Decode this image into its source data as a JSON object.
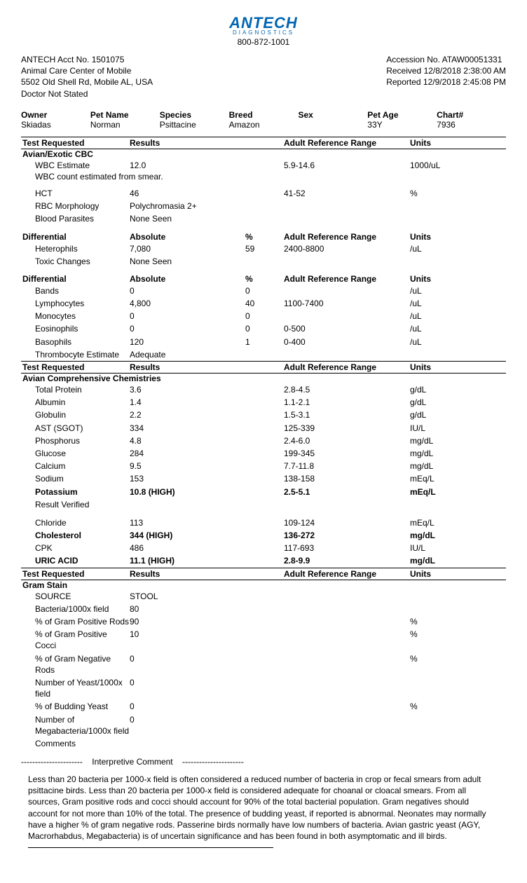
{
  "logo": {
    "name": "ANTECH",
    "sub": "DIAGNOSTICS",
    "phone": "800-872-1001"
  },
  "header": {
    "acct": "ANTECH Acct No. 1501075",
    "clinic": "Animal Care Center of Mobile",
    "address": "5502 Old Shell Rd, Mobile AL, USA",
    "doctor": "Doctor Not Stated",
    "accession": "Accession No. ATAW00051331",
    "received": "Received 12/8/2018 2:38:00 AM",
    "reported": "Reported 12/9/2018 2:45:08 PM"
  },
  "pet": {
    "owner_l": "Owner",
    "owner_v": "Skiadas",
    "name_l": "Pet Name",
    "name_v": "Norman",
    "species_l": "Species",
    "species_v": "Psittacine",
    "breed_l": "Breed",
    "breed_v": "Amazon",
    "sex_l": "Sex",
    "sex_v": "",
    "age_l": "Pet Age",
    "age_v": "33Y",
    "chart_l": "Chart#",
    "chart_v": "7936"
  },
  "cols": {
    "test": "Test Requested",
    "res": "Results",
    "pct": "%",
    "ref": "Adult Reference Range",
    "units": "Units"
  },
  "cbc": {
    "title": "Avian/Exotic CBC",
    "rows": [
      {
        "n": "WBC Estimate",
        "r": "12.0",
        "ref": "5.9-14.6",
        "u": "1000/uL"
      }
    ],
    "note": "WBC count estimated from smear.",
    "rows2": [
      {
        "n": "HCT",
        "r": "46",
        "ref": "41-52",
        "u": "%"
      },
      {
        "n": "RBC Morphology",
        "r": "Polychromasia 2+",
        "ref": "",
        "u": ""
      },
      {
        "n": "Blood Parasites",
        "r": "None Seen",
        "ref": "",
        "u": ""
      }
    ]
  },
  "diff1": {
    "h": {
      "test": "Differential",
      "res": "Absolute",
      "pct": "%",
      "ref": "Adult Reference Range",
      "units": "Units"
    },
    "rows": [
      {
        "n": "Heterophils",
        "r": "7,080",
        "p": "59",
        "ref": "2400-8800",
        "u": "/uL"
      },
      {
        "n": "Toxic Changes",
        "r": "None Seen",
        "p": "",
        "ref": "",
        "u": ""
      }
    ]
  },
  "diff2": {
    "h": {
      "test": "Differential",
      "res": "Absolute",
      "pct": "%",
      "ref": "Adult Reference Range",
      "units": "Units"
    },
    "rows": [
      {
        "n": "Bands",
        "r": "0",
        "p": "0",
        "ref": "",
        "u": "/uL"
      },
      {
        "n": "Lymphocytes",
        "r": "4,800",
        "p": "40",
        "ref": "1100-7400",
        "u": "/uL"
      },
      {
        "n": "Monocytes",
        "r": "0",
        "p": "0",
        "ref": "",
        "u": "/uL"
      },
      {
        "n": "Eosinophils",
        "r": "0",
        "p": "0",
        "ref": "0-500",
        "u": "/uL"
      },
      {
        "n": "Basophils",
        "r": "120",
        "p": "1",
        "ref": "0-400",
        "u": "/uL"
      },
      {
        "n": "Thrombocyte Estimate",
        "r": "Adequate",
        "p": "",
        "ref": "",
        "u": ""
      }
    ]
  },
  "chem": {
    "title": "Avian Comprehensive Chemistries",
    "rows": [
      {
        "n": "Total Protein",
        "r": "3.6",
        "ref": "2.8-4.5",
        "u": "g/dL",
        "b": false
      },
      {
        "n": "Albumin",
        "r": "1.4",
        "ref": "1.1-2.1",
        "u": "g/dL",
        "b": false
      },
      {
        "n": "Globulin",
        "r": "2.2",
        "ref": "1.5-3.1",
        "u": "g/dL",
        "b": false
      },
      {
        "n": "AST (SGOT)",
        "r": "334",
        "ref": "125-339",
        "u": "IU/L",
        "b": false
      },
      {
        "n": "Phosphorus",
        "r": "4.8",
        "ref": "2.4-6.0",
        "u": "mg/dL",
        "b": false
      },
      {
        "n": "Glucose",
        "r": "284",
        "ref": "199-345",
        "u": "mg/dL",
        "b": false
      },
      {
        "n": "Calcium",
        "r": "9.5",
        "ref": "7.7-11.8",
        "u": "mg/dL",
        "b": false
      },
      {
        "n": "Sodium",
        "r": "153",
        "ref": "138-158",
        "u": "mEq/L",
        "b": false
      },
      {
        "n": "Potassium",
        "r": "10.8 (HIGH)",
        "ref": "2.5-5.1",
        "u": "mEq/L",
        "b": true
      },
      {
        "n": "Result Verified",
        "r": "",
        "ref": "",
        "u": "",
        "b": false
      }
    ],
    "rows2": [
      {
        "n": "Chloride",
        "r": "113",
        "ref": "109-124",
        "u": "mEq/L",
        "b": false
      },
      {
        "n": "Cholesterol",
        "r": "344 (HIGH)",
        "ref": "136-272",
        "u": "mg/dL",
        "b": true
      },
      {
        "n": "CPK",
        "r": "486",
        "ref": "117-693",
        "u": "IU/L",
        "b": false
      },
      {
        "n": "URIC ACID",
        "r": "11.1 (HIGH)",
        "ref": "2.8-9.9",
        "u": "mg/dL",
        "b": true
      }
    ]
  },
  "gram": {
    "title": "Gram Stain",
    "rows": [
      {
        "n": "SOURCE",
        "r": "STOOL",
        "ref": "",
        "u": ""
      },
      {
        "n": "Bacteria/1000x field",
        "r": "80",
        "ref": "",
        "u": ""
      },
      {
        "n": "% of Gram Positive Rods",
        "r": "90",
        "ref": "",
        "u": "%"
      },
      {
        "n": "% of Gram Positive Cocci",
        "r": "10",
        "ref": "",
        "u": "%"
      },
      {
        "n": "% of Gram Negative Rods",
        "r": "0",
        "ref": "",
        "u": "%"
      },
      {
        "n": "Number of Yeast/1000x field",
        "r": "0",
        "ref": "",
        "u": ""
      },
      {
        "n": "% of Budding Yeast",
        "r": "0",
        "ref": "",
        "u": "%"
      },
      {
        "n": "Number of Megabacteria/1000x field",
        "r": "0",
        "ref": "",
        "u": ""
      },
      {
        "n": "Comments",
        "r": "",
        "ref": "",
        "u": ""
      }
    ]
  },
  "interp": {
    "dash_l": "----------------------",
    "label": "Interpretive Comment",
    "dash_r": "----------------------",
    "text": "Less than 20 bacteria per 1000-x field is often considered a reduced number of bacteria in crop or fecal smears from adult psittacine birds.   Less than 20 bacteria per 1000-x field is considered adequate for choanal or cloacal smears.   From all sources, Gram positive rods and cocci should account for 90% of the total bacterial population.   Gram negatives should account for not more than 10% of the total.   The presence of budding yeast, if reported is abnormal. Neonates may normally have a higher % of gram negative rods.   Passerine birds normally have low numbers of bacteria.   Avian gastric yeast (AGY, Macrorhabdus, Megabacteria) is of uncertain significance and has been found in both asymptomatic and ill birds."
  }
}
